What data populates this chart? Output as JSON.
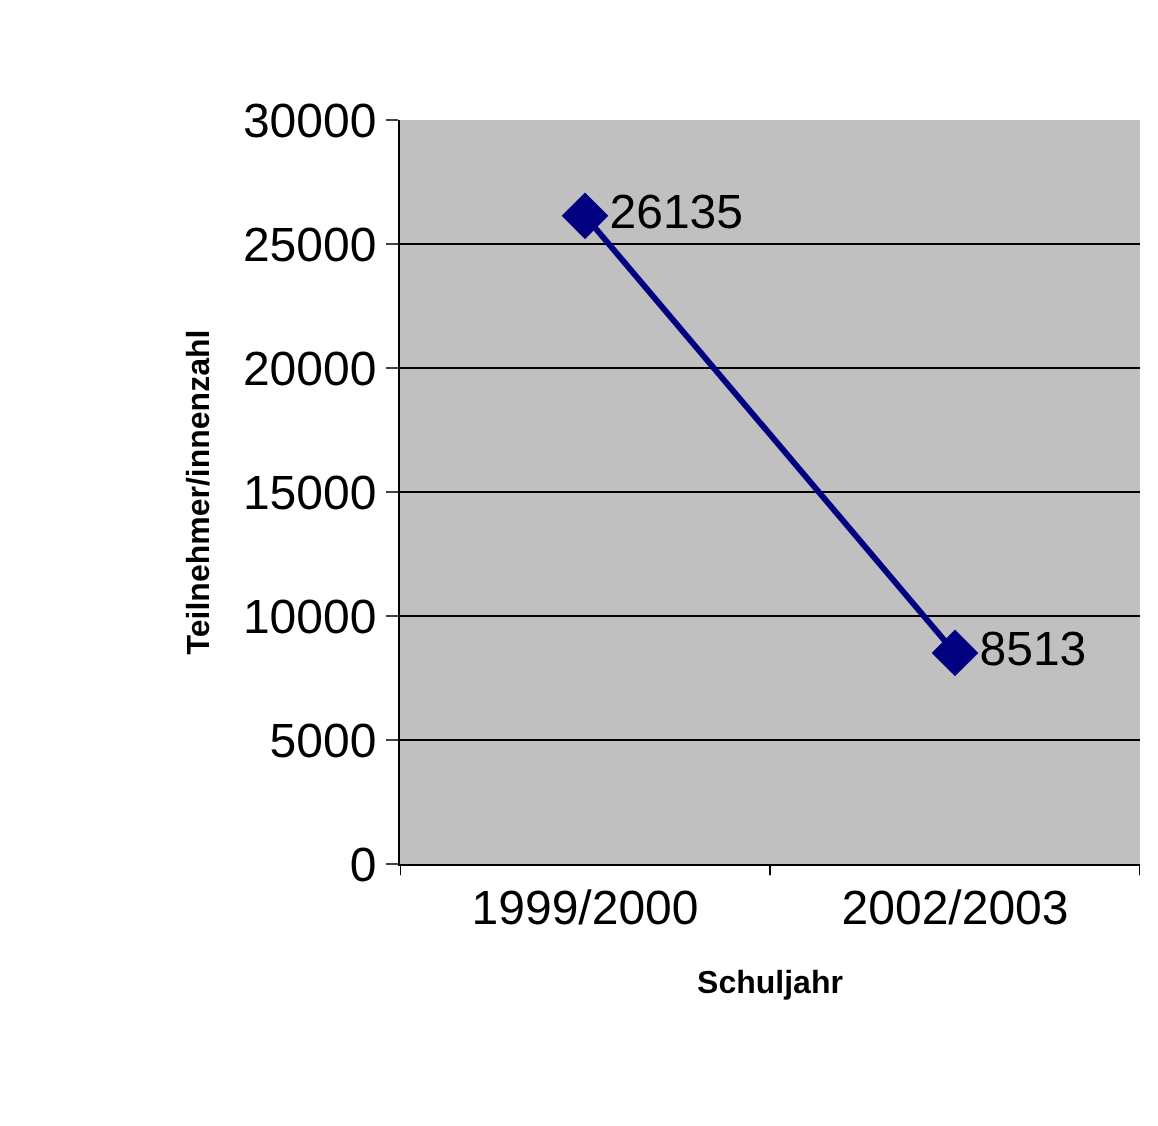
{
  "chart_data": {
    "type": "line",
    "categories": [
      "1999/2000",
      "2002/2003"
    ],
    "series": [
      {
        "color": "#000080",
        "values": [
          26135,
          8513
        ]
      }
    ],
    "xlabel": "Schuljahr",
    "ylabel": "Teilnehmer/innenzahl",
    "ylim": [
      0,
      30000
    ],
    "yticks": [
      0,
      5000,
      10000,
      15000,
      20000,
      25000,
      30000
    ],
    "grid": "y",
    "marker": "diamond",
    "line_style": "solid",
    "data_labels": true
  }
}
